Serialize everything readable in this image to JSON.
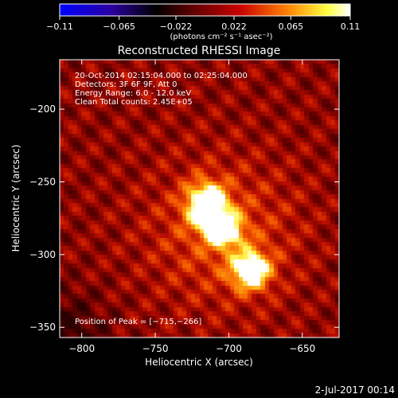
{
  "chart_data": {
    "type": "heatmap",
    "title": "Reconstructed RHESSI Image",
    "xlabel": "Heliocentric X (arcsec)",
    "ylabel": "Heliocentric Y (arcsec)",
    "xlim": [
      -815,
      -625
    ],
    "ylim": [
      -357,
      -166
    ],
    "x_ticks": [
      -800,
      -750,
      -700,
      -650
    ],
    "x_tick_labels": [
      "−800",
      "−750",
      "−700",
      "−650"
    ],
    "y_ticks": [
      -200,
      -250,
      -300,
      -350
    ],
    "y_tick_labels": [
      "−200",
      "−250",
      "−300",
      "−350"
    ],
    "colorbar": {
      "range": [
        -0.11,
        0.11
      ],
      "ticks": [
        -0.11,
        -0.065,
        -0.022,
        0.022,
        0.065,
        0.11
      ],
      "tick_labels": [
        "−0.11",
        "−0.065",
        "−0.022",
        "0.022",
        "0.065",
        "0.11"
      ],
      "unit_label": "(photons cm⁻² s⁻¹ asec⁻²)",
      "colors": [
        "#0000ff",
        "#2a00a0",
        "#000000",
        "#5a0000",
        "#c80000",
        "#ff8000",
        "#ffff40",
        "#ffffff"
      ]
    },
    "background_level": 0.03,
    "sources": [
      {
        "x": -715,
        "y": -266,
        "sigma_x": 9,
        "sigma_y": 10,
        "peak": 0.11
      },
      {
        "x": -703,
        "y": -283,
        "sigma_x": 8,
        "sigma_y": 8,
        "peak": 0.09
      },
      {
        "x": -685,
        "y": -311,
        "sigma_x": 9,
        "sigma_y": 9,
        "peak": 0.095
      }
    ],
    "annotations": {
      "time_range": "20-Oct-2014 02:15:04.000 to 02:25:04.000",
      "detectors": "Detectors: 3F 6F 9F, Att 0",
      "energy_range": "Energy Range: 6.0 - 12.0 keV",
      "clean": "Clean    Total counts: 2.45E+05",
      "peak_position": "Position of Peak = [−715,−266]"
    }
  },
  "footer": {
    "date": "2-Jul-2017 00:14"
  }
}
